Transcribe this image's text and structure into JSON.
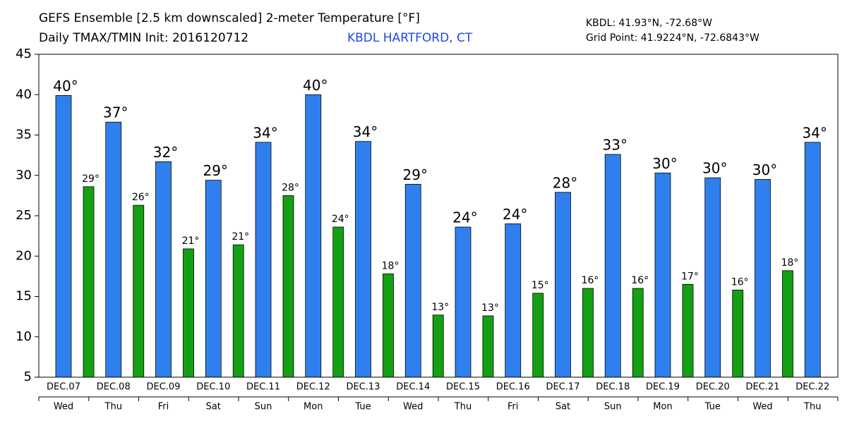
{
  "chart_data": {
    "type": "bar",
    "title": "GEFS Ensemble [2.5 km downscaled] 2-meter Temperature [°F]",
    "subtitle": "Daily TMAX/TMIN Init: 2016120712",
    "location": "KBDL HARTFORD, CT",
    "station_coords": "KBDL: 41.93°N, -72.68°W",
    "grid_coords": "Grid Point: 41.9224°N, -72.6843°W",
    "categories": [
      "DEC.07",
      "DEC.08",
      "DEC.09",
      "DEC.10",
      "DEC.11",
      "DEC.12",
      "DEC.13",
      "DEC.14",
      "DEC.15",
      "DEC.16",
      "DEC.17",
      "DEC.18",
      "DEC.19",
      "DEC.20",
      "DEC.21",
      "DEC.22"
    ],
    "weekdays": [
      "Wed",
      "Thu",
      "Fri",
      "Sat",
      "Sun",
      "Mon",
      "Tue",
      "Wed",
      "Thu",
      "Fri",
      "Sat",
      "Sun",
      "Mon",
      "Tue",
      "Wed",
      "Thu"
    ],
    "series": [
      {
        "name": "TMAX",
        "color": "#2f80ee",
        "values": [
          39.9,
          36.6,
          31.7,
          29.4,
          34.1,
          40.0,
          34.2,
          28.9,
          23.6,
          24.0,
          27.9,
          32.6,
          30.3,
          29.7,
          29.5,
          34.1
        ],
        "value_labels": [
          "40°",
          "37°",
          "32°",
          "29°",
          "34°",
          "40°",
          "34°",
          "29°",
          "24°",
          "24°",
          "28°",
          "33°",
          "30°",
          "30°",
          "30°",
          "34°"
        ]
      },
      {
        "name": "TMIN",
        "color": "#14a014",
        "values": [
          28.6,
          26.3,
          20.9,
          21.4,
          27.5,
          23.6,
          17.8,
          12.7,
          12.6,
          15.4,
          16.0,
          16.0,
          16.5,
          15.8,
          18.2,
          null
        ],
        "value_labels": [
          "29°",
          "26°",
          "21°",
          "21°",
          "28°",
          "24°",
          "18°",
          "13°",
          "13°",
          "15°",
          "16°",
          "16°",
          "17°",
          "16°",
          "18°",
          null
        ]
      }
    ],
    "ylim": [
      5,
      45
    ],
    "yticks": [
      5,
      10,
      15,
      20,
      25,
      30,
      35,
      40,
      45
    ],
    "grid": false
  }
}
